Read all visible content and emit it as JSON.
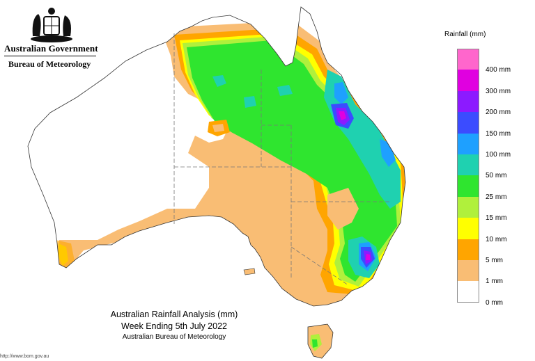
{
  "header": {
    "government": "Australian Government",
    "bureau": "Bureau of Meteorology"
  },
  "caption": {
    "title": "Australian Rainfall Analysis (mm)",
    "subtitle": "Week Ending 5th July 2022",
    "source": "Australian Bureau of Meteorology"
  },
  "footer": {
    "url": "http://www.bom.gov.au"
  },
  "legend": {
    "title": "Rainfall (mm)",
    "items": [
      {
        "label": "400 mm",
        "color": "#ff66cc"
      },
      {
        "label": "300 mm",
        "color": "#e000e0"
      },
      {
        "label": "200 mm",
        "color": "#8c1aff"
      },
      {
        "label": "150 mm",
        "color": "#3b4cff"
      },
      {
        "label": "100 mm",
        "color": "#1ea0ff"
      },
      {
        "label": "50 mm",
        "color": "#1fd1b0"
      },
      {
        "label": "25 mm",
        "color": "#2fe52f"
      },
      {
        "label": "15 mm",
        "color": "#b0f03c"
      },
      {
        "label": "10 mm",
        "color": "#ffff00"
      },
      {
        "label": "5 mm",
        "color": "#ffa500"
      },
      {
        "label": "1 mm",
        "color": "#f9bd74"
      },
      {
        "label": "0 mm",
        "color": "#ffffff"
      }
    ]
  }
}
